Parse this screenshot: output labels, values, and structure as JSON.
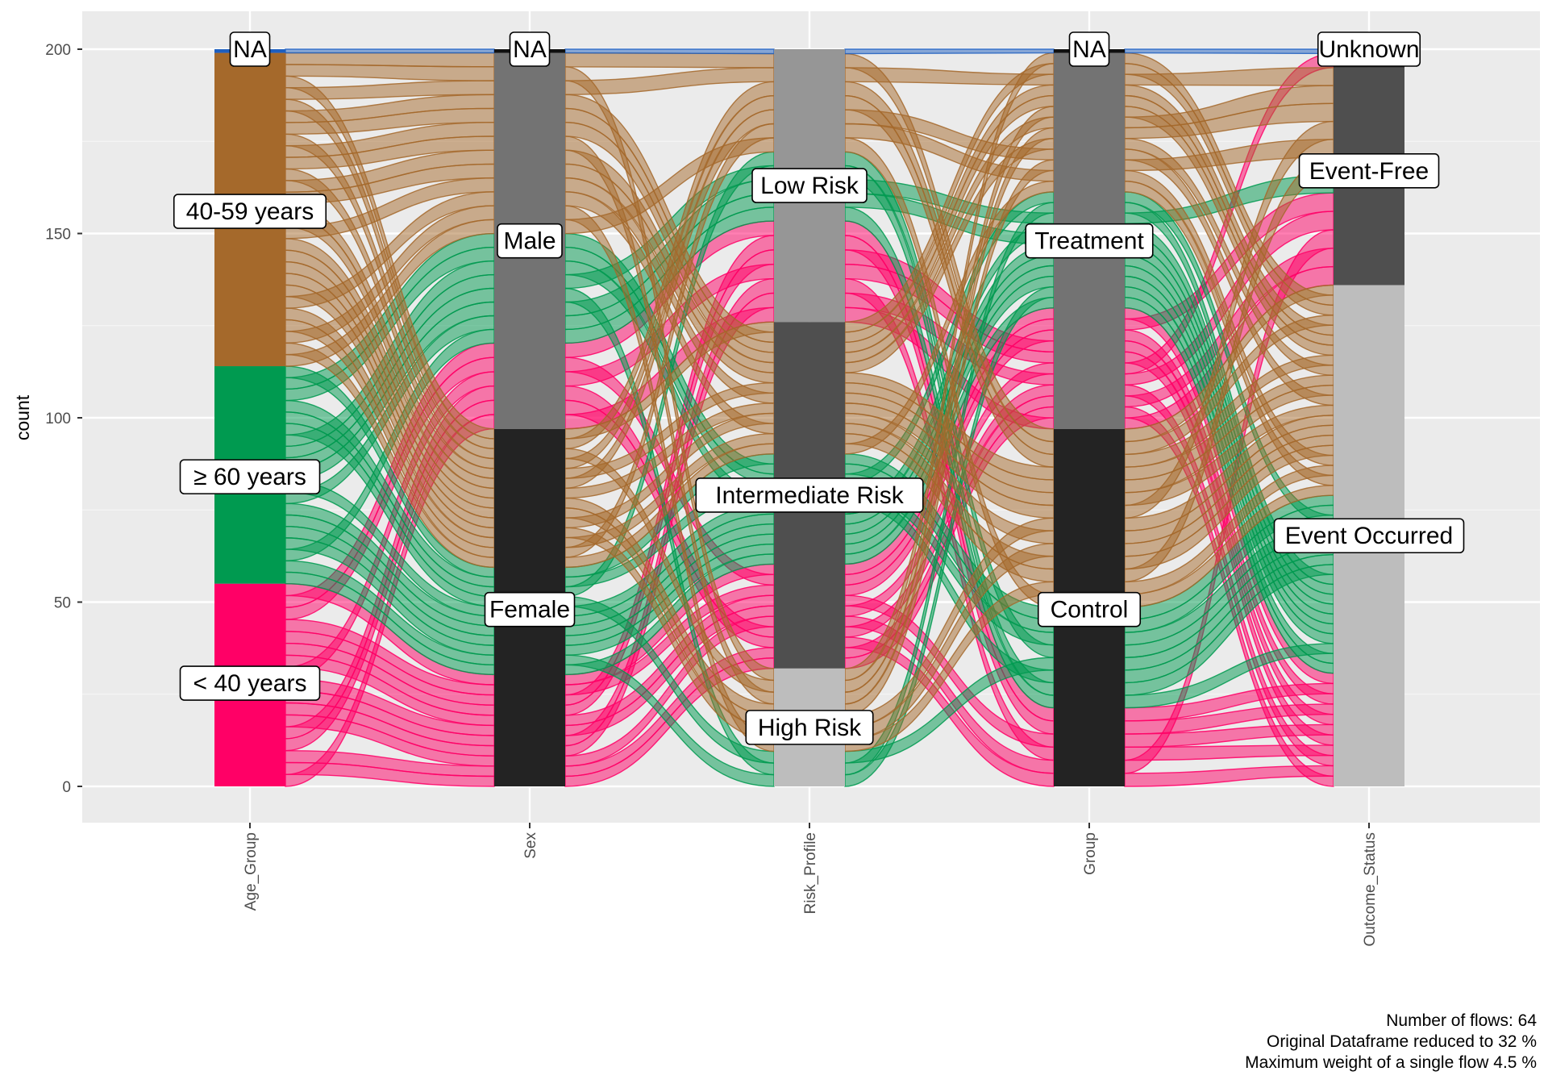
{
  "chart_data": {
    "type": "alluvial",
    "ylabel": "count",
    "ylim": [
      -10,
      210
    ],
    "yticks": [
      0,
      50,
      100,
      150,
      200
    ],
    "grid": true,
    "axes": [
      {
        "name": "Age_Group",
        "strata": [
          {
            "label": "< 40 years",
            "from": 0,
            "to": 55,
            "color": "#ff0066"
          },
          {
            "label": "≥ 60 years",
            "from": 55,
            "to": 114,
            "color": "#009a50"
          },
          {
            "label": "40-59 years",
            "from": 114,
            "to": 199,
            "color": "#a5692b"
          },
          {
            "label": "NA",
            "from": 199,
            "to": 200,
            "color": "#1f5fbf"
          }
        ]
      },
      {
        "name": "Sex",
        "strata": [
          {
            "label": "Female",
            "from": 0,
            "to": 97,
            "color": "#232323"
          },
          {
            "label": "Male",
            "from": 97,
            "to": 199,
            "color": "#737373"
          },
          {
            "label": "NA",
            "from": 199,
            "to": 200,
            "color": "#111111"
          }
        ]
      },
      {
        "name": "Risk_Profile",
        "strata": [
          {
            "label": "High Risk",
            "from": 0,
            "to": 32,
            "color": "#bdbdbd"
          },
          {
            "label": "Intermediate Risk",
            "from": 32,
            "to": 126,
            "color": "#4f4f4f"
          },
          {
            "label": "Low Risk",
            "from": 126,
            "to": 200,
            "color": "#969696"
          }
        ]
      },
      {
        "name": "Group",
        "strata": [
          {
            "label": "Control",
            "from": 0,
            "to": 97,
            "color": "#232323"
          },
          {
            "label": "Treatment",
            "from": 97,
            "to": 199,
            "color": "#737373"
          },
          {
            "label": "NA",
            "from": 199,
            "to": 200,
            "color": "#111111"
          }
        ]
      },
      {
        "name": "Outcome_Status",
        "strata": [
          {
            "label": "Event Occurred",
            "from": 0,
            "to": 136,
            "color": "#bdbdbd"
          },
          {
            "label": "Event-Free",
            "from": 136,
            "to": 195,
            "color": "#4f4f4f"
          },
          {
            "label": "Unknown",
            "from": 195,
            "to": 200,
            "color": "#2b2b2b"
          }
        ]
      }
    ],
    "flow_groups": [
      {
        "stratum": "< 40 years",
        "color": "#ff0066",
        "count": 17
      },
      {
        "stratum": "≥ 60 years",
        "color": "#009a50",
        "count": 19
      },
      {
        "stratum": "40-59 years",
        "color": "#a5692b",
        "count": 27
      },
      {
        "stratum": "NA",
        "color": "#1f5fbf",
        "count": 1
      }
    ]
  },
  "caption": {
    "line1": "Number of flows: 64",
    "line2": "Original Dataframe reduced to 32 %",
    "line3": "Maximum weight of a single flow 4.5 %"
  }
}
